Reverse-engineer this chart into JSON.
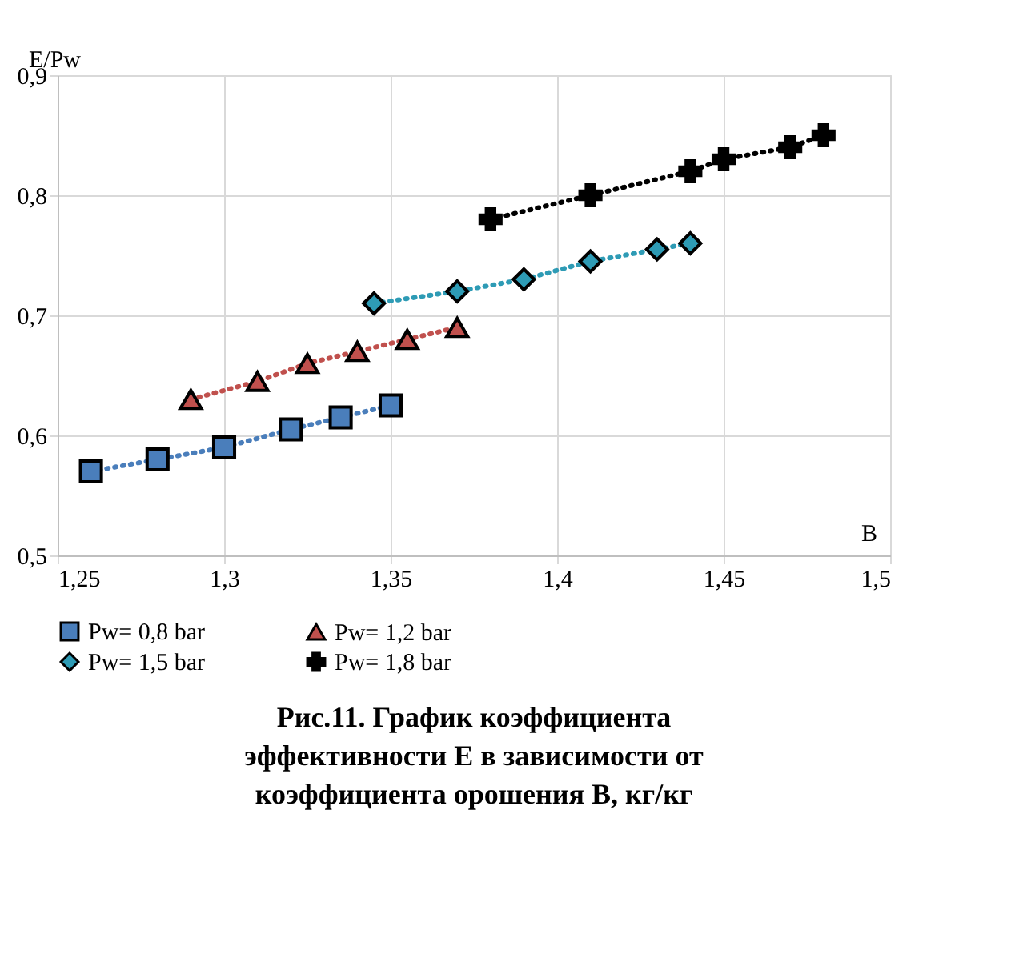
{
  "chart_data": {
    "type": "line",
    "title": "Рис.11. График коэффициента эффективности Е в зависимости от коэффициента орошения В, кг/кг",
    "xlabel": "B",
    "ylabel": "E/Pw",
    "xlim": [
      1.25,
      1.5
    ],
    "xticks": [
      {
        "value": 1.25,
        "label": "1,25"
      },
      {
        "value": 1.3,
        "label": "1,3"
      },
      {
        "value": 1.35,
        "label": "1,35"
      },
      {
        "value": 1.4,
        "label": "1,4"
      },
      {
        "value": 1.45,
        "label": "1,45"
      },
      {
        "value": 1.5,
        "label": "1,5"
      }
    ],
    "ylim": [
      0.5,
      0.9
    ],
    "yticks": [
      {
        "value": 0.5,
        "label": "0,5"
      },
      {
        "value": 0.6,
        "label": "0,6"
      },
      {
        "value": 0.7,
        "label": "0,7"
      },
      {
        "value": 0.8,
        "label": "0,8"
      },
      {
        "value": 0.9,
        "label": "0,9"
      }
    ],
    "grid": true,
    "legend": "bottom",
    "line_style": "dotted",
    "series": [
      {
        "name": "Pw= 0,8 bar",
        "color": "#4a7ebb",
        "marker": "square",
        "x": [
          1.26,
          1.28,
          1.3,
          1.32,
          1.335,
          1.35
        ],
        "values": [
          0.57,
          0.58,
          0.59,
          0.605,
          0.615,
          0.625
        ]
      },
      {
        "name": "Pw= 1,2 bar",
        "color": "#c0504d",
        "marker": "triangle",
        "x": [
          1.29,
          1.31,
          1.325,
          1.34,
          1.355,
          1.37
        ],
        "values": [
          0.63,
          0.645,
          0.66,
          0.67,
          0.68,
          0.69
        ]
      },
      {
        "name": "Pw= 1,5 bar",
        "color": "#2e9bb5",
        "marker": "diamond",
        "x": [
          1.345,
          1.37,
          1.39,
          1.41,
          1.43,
          1.44
        ],
        "values": [
          0.71,
          0.72,
          0.73,
          0.745,
          0.755,
          0.76
        ]
      },
      {
        "name": "Pw= 1,8 bar",
        "color": "#000000",
        "marker": "cross",
        "x": [
          1.38,
          1.41,
          1.44,
          1.45,
          1.47,
          1.48
        ],
        "values": [
          0.78,
          0.8,
          0.82,
          0.83,
          0.84,
          0.85
        ]
      }
    ]
  }
}
